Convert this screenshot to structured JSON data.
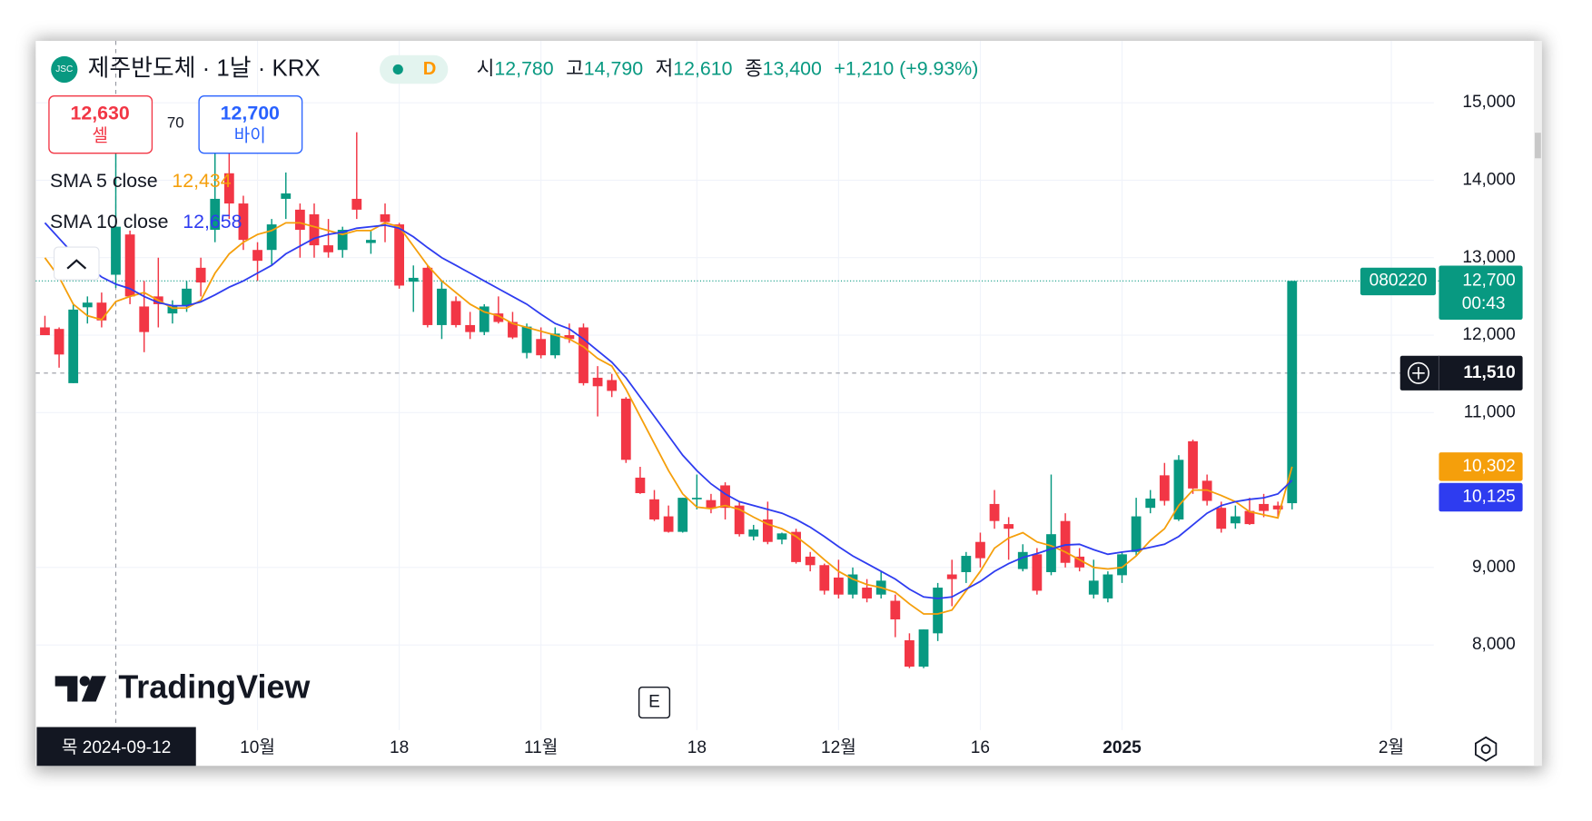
{
  "symbol": {
    "icon": "JSC",
    "name": "제주반도체 · 1날 · KRX",
    "interval_badge": "D"
  },
  "header_ohlc": [
    {
      "label": "시",
      "value": "12,780"
    },
    {
      "label": "고",
      "value": "14,790"
    },
    {
      "label": "저",
      "value": "12,610"
    },
    {
      "label": "종",
      "value": "13,400"
    }
  ],
  "change": "+1,210 (+9.93%)",
  "quote": {
    "sell": {
      "price": "12,630",
      "label": "셀"
    },
    "spread": "70",
    "buy": {
      "price": "12,700",
      "label": "바이"
    }
  },
  "branding": "TradingView",
  "chart_data": {
    "type": "candlestick",
    "up_color": "#089981",
    "down_color": "#f23645",
    "grid": true,
    "open": [
      12100,
      12080,
      11380,
      12360,
      12420,
      12780,
      13300,
      12370,
      12500,
      12280,
      12370,
      12870,
      13360,
      14090,
      13700,
      13100,
      13100,
      13760,
      13620,
      13560,
      13160,
      13100,
      13760,
      13190,
      13560,
      13430,
      12690,
      12870,
      12130,
      12440,
      12130,
      12040,
      12280,
      12170,
      11770,
      11950,
      11740,
      12000,
      12100,
      11450,
      11420,
      11180,
      10160,
      9880,
      9660,
      9460,
      9880,
      9870,
      10060,
      9800,
      9400,
      9620,
      9360,
      9460,
      9140,
      9030,
      8870,
      8650,
      8740,
      8650,
      8570,
      8060,
      7720,
      8150,
      8910,
      8940,
      9330,
      9820,
      9560,
      8980,
      9170,
      8940,
      9600,
      9140,
      8650,
      8600,
      8900,
      9200,
      9770,
      10190,
      9620,
      10630,
      10120,
      9770,
      9570,
      9730,
      9820,
      9800,
      9830
    ],
    "high": [
      12250,
      12100,
      12400,
      12500,
      12550,
      14790,
      13350,
      12700,
      13000,
      12450,
      12700,
      13000,
      14350,
      14500,
      13800,
      13200,
      13500,
      14100,
      13700,
      13700,
      13500,
      13400,
      14620,
      13350,
      13700,
      13450,
      12900,
      12900,
      12700,
      12500,
      12300,
      12400,
      12500,
      12300,
      12150,
      12100,
      12100,
      12150,
      12150,
      11600,
      11500,
      11200,
      10300,
      10000,
      9800,
      9900,
      10200,
      9950,
      10100,
      9850,
      9550,
      9850,
      9450,
      9500,
      9200,
      9050,
      9100,
      9000,
      8850,
      8950,
      8650,
      8150,
      8200,
      8800,
      9100,
      9200,
      9450,
      10000,
      9650,
      9300,
      9250,
      10200,
      9700,
      9250,
      9100,
      8950,
      9200,
      9900,
      10000,
      10350,
      10450,
      10650,
      10200,
      9850,
      9800,
      9900,
      9950,
      9850,
      12700
    ],
    "low": [
      12000,
      11580,
      11380,
      12150,
      12100,
      12610,
      12400,
      11780,
      12100,
      12150,
      12300,
      12500,
      13200,
      13500,
      13100,
      12700,
      12900,
      13500,
      13000,
      13000,
      13000,
      13000,
      13500,
      13050,
      13200,
      12600,
      12300,
      12100,
      11950,
      12100,
      11950,
      12000,
      12150,
      11950,
      11700,
      11700,
      11700,
      11900,
      11350,
      10950,
      11200,
      10350,
      9950,
      9600,
      9450,
      9450,
      9750,
      9700,
      9620,
      9400,
      9350,
      9300,
      9300,
      9050,
      8950,
      8650,
      8600,
      8600,
      8550,
      8600,
      8100,
      7700,
      7700,
      8050,
      8500,
      8800,
      9000,
      9500,
      9100,
      8950,
      8650,
      8900,
      9000,
      8950,
      8600,
      8550,
      8800,
      9150,
      9700,
      9800,
      9600,
      9950,
      9800,
      9450,
      9500,
      9550,
      9650,
      9650,
      9750
    ],
    "close": [
      12000,
      11750,
      12330,
      12420,
      12190,
      13400,
      12500,
      12040,
      12400,
      12370,
      12600,
      12680,
      13760,
      13700,
      13230,
      12960,
      13430,
      13830,
      13360,
      13160,
      13070,
      13360,
      13620,
      13230,
      13460,
      12640,
      12740,
      12130,
      12600,
      12130,
      12040,
      12370,
      12170,
      11970,
      12110,
      11740,
      12020,
      11950,
      11380,
      11340,
      11280,
      10390,
      9960,
      9620,
      9460,
      9900,
      9900,
      9760,
      9770,
      9430,
      9490,
      9330,
      9440,
      9070,
      9030,
      8700,
      8650,
      8910,
      8600,
      8830,
      8330,
      7720,
      8200,
      8740,
      8850,
      9150,
      9120,
      9600,
      9500,
      9200,
      8700,
      9430,
      9060,
      9000,
      8830,
      8910,
      9170,
      9660,
      9890,
      9860,
      10390,
      10020,
      9860,
      9500,
      9660,
      9560,
      9730,
      9750,
      12700
    ],
    "series": [
      {
        "name": "SMA 5 close",
        "color": "#f59f0b",
        "legend_label": "12,434",
        "last_label": "10,302",
        "values": [
          13000,
          12750,
          12400,
          12250,
          12200,
          12434,
          12500,
          12550,
          12450,
          12350,
          12350,
          12450,
          12800,
          13050,
          13200,
          13300,
          13350,
          13450,
          13450,
          13400,
          13350,
          13300,
          13350,
          13350,
          13450,
          13400,
          13150,
          12900,
          12700,
          12550,
          12400,
          12300,
          12250,
          12150,
          12100,
          12050,
          12000,
          11950,
          11850,
          11700,
          11600,
          11300,
          10950,
          10600,
          10250,
          9950,
          9780,
          9760,
          9800,
          9750,
          9650,
          9560,
          9500,
          9400,
          9260,
          9100,
          8950,
          8850,
          8780,
          8740,
          8680,
          8530,
          8400,
          8400,
          8450,
          8700,
          8950,
          9250,
          9380,
          9450,
          9330,
          9280,
          9200,
          9100,
          9000,
          8980,
          9000,
          9150,
          9350,
          9500,
          9800,
          10000,
          10000,
          9930,
          9850,
          9720,
          9680,
          9640,
          10302
        ]
      },
      {
        "name": "SMA 10 close",
        "color": "#2e3cf0",
        "legend_label": "12,658",
        "last_label": "10,125",
        "values": [
          13450,
          13250,
          13050,
          12900,
          12750,
          12658,
          12600,
          12500,
          12420,
          12380,
          12380,
          12430,
          12520,
          12620,
          12700,
          12800,
          12900,
          13050,
          13150,
          13250,
          13300,
          13330,
          13380,
          13400,
          13420,
          13380,
          13270,
          13130,
          13000,
          12900,
          12800,
          12700,
          12600,
          12500,
          12400,
          12270,
          12150,
          12080,
          11950,
          11800,
          11650,
          11450,
          11200,
          10950,
          10700,
          10450,
          10250,
          10080,
          9950,
          9850,
          9800,
          9750,
          9700,
          9620,
          9520,
          9400,
          9270,
          9150,
          9050,
          8950,
          8850,
          8720,
          8620,
          8600,
          8620,
          8720,
          8820,
          8950,
          9050,
          9130,
          9180,
          9240,
          9290,
          9300,
          9230,
          9170,
          9200,
          9220,
          9260,
          9300,
          9400,
          9550,
          9700,
          9800,
          9850,
          9880,
          9900,
          9950,
          10125
        ]
      }
    ],
    "ylim": [
      6900,
      15800
    ],
    "yticks": [
      {
        "value": 8000,
        "label": "8,000"
      },
      {
        "value": 9000,
        "label": "9,000"
      },
      {
        "value": 11000,
        "label": "11,000"
      },
      {
        "value": 12000,
        "label": "12,000"
      },
      {
        "value": 13000,
        "label": "13,000"
      },
      {
        "value": 14000,
        "label": "14,000"
      },
      {
        "value": 15000,
        "label": "15,000"
      }
    ],
    "xlim": [
      -0.65,
      98
    ],
    "xticks": [
      {
        "value": 15,
        "label": "10월"
      },
      {
        "value": 25,
        "label": "18"
      },
      {
        "value": 35,
        "label": "11월"
      },
      {
        "value": 46,
        "label": "18"
      },
      {
        "value": 56,
        "label": "12월"
      },
      {
        "value": 66,
        "label": "16"
      },
      {
        "value": 76,
        "label": "2025"
      },
      {
        "value": 95,
        "label": "2월"
      }
    ],
    "last_price": {
      "value": 12700,
      "label": "12,700",
      "countdown": "00:43",
      "symbol": "080220"
    },
    "crosshair": {
      "x": 5,
      "x_label": "목 2024-09-12",
      "y": 11510,
      "y_label": "11,510"
    },
    "events": [
      {
        "x": 43,
        "label": "E"
      }
    ]
  }
}
